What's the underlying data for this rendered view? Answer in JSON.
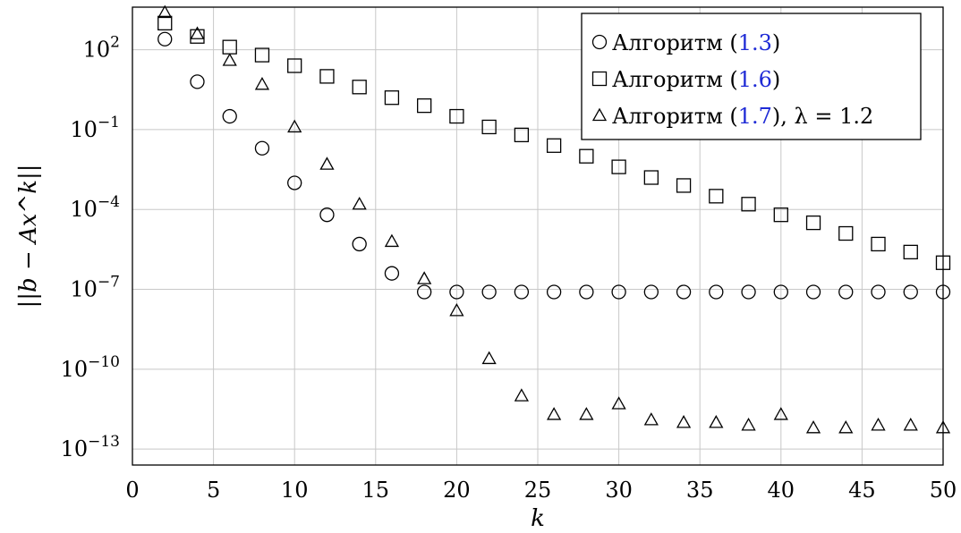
{
  "chart_data": {
    "type": "scatter",
    "xlabel": "k",
    "ylabel": "||b − Ax^k||",
    "xlim": [
      0,
      50
    ],
    "ylim_exp": [
      -13.6,
      3.6
    ],
    "log_y": true,
    "grid": true,
    "legend_position": "top-right",
    "x_ticks": [
      0,
      5,
      10,
      15,
      20,
      25,
      30,
      35,
      40,
      45,
      50
    ],
    "y_tick_exponents": [
      2,
      -1,
      -4,
      -7,
      -10,
      -13
    ],
    "y_tick_base": "10",
    "y_tick_labels_exp": [
      "2",
      "−1",
      "−4",
      "−7",
      "−10",
      "−13"
    ],
    "series": [
      {
        "name": "Алгоритм (1.3)",
        "name_main": "Алгоритм (",
        "name_ref": "1.3",
        "name_tail": ")",
        "marker": "circle",
        "x": [
          2,
          4,
          6,
          8,
          10,
          12,
          14,
          16,
          18,
          20,
          22,
          24,
          26,
          28,
          30,
          32,
          34,
          36,
          38,
          40,
          42,
          44,
          46,
          48,
          50
        ],
        "y_exp": [
          2.4,
          0.8,
          -0.5,
          -1.7,
          -3.0,
          -4.2,
          -5.3,
          -6.4,
          -7.1,
          -7.1,
          -7.1,
          -7.1,
          -7.1,
          -7.1,
          -7.1,
          -7.1,
          -7.1,
          -7.1,
          -7.1,
          -7.1,
          -7.1,
          -7.1,
          -7.1,
          -7.1,
          -7.1
        ]
      },
      {
        "name": "Алгоритм (1.6)",
        "name_main": "Алгоритм (",
        "name_ref": "1.6",
        "name_tail": ")",
        "marker": "square",
        "x": [
          2,
          4,
          6,
          8,
          10,
          12,
          14,
          16,
          18,
          20,
          22,
          24,
          26,
          28,
          30,
          32,
          34,
          36,
          38,
          40,
          42,
          44,
          46,
          48,
          50
        ],
        "y_exp": [
          3.0,
          2.5,
          2.1,
          1.8,
          1.4,
          1.0,
          0.6,
          0.2,
          -0.1,
          -0.5,
          -0.9,
          -1.2,
          -1.6,
          -2.0,
          -2.4,
          -2.8,
          -3.1,
          -3.5,
          -3.8,
          -4.2,
          -4.5,
          -4.9,
          -5.3,
          -5.6,
          -6.0
        ]
      },
      {
        "name": "Алгоритм (1.7), λ = 1.2",
        "name_main": "Алгоритм (",
        "name_ref": "1.7",
        "name_tail": "), λ = 1.2",
        "marker": "triangle",
        "x": [
          2,
          4,
          6,
          8,
          10,
          12,
          14,
          16,
          18,
          20,
          22,
          24,
          26,
          28,
          30,
          32,
          34,
          36,
          38,
          40,
          42,
          44,
          46,
          48,
          50
        ],
        "y_exp": [
          3.4,
          2.6,
          1.6,
          0.7,
          -0.9,
          -2.3,
          -3.8,
          -5.2,
          -6.6,
          -7.8,
          -9.6,
          -11.0,
          -11.7,
          -11.7,
          -11.3,
          -11.9,
          -12.0,
          -12.0,
          -12.1,
          -11.7,
          -12.2,
          -12.2,
          -12.1,
          -12.1,
          -12.2
        ]
      }
    ]
  }
}
